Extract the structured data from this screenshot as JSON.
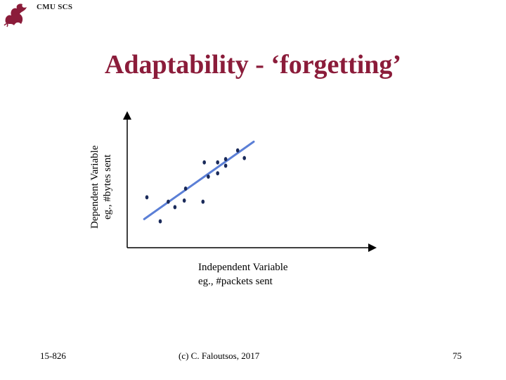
{
  "header": {
    "label": "CMU SCS",
    "logo_icon": "dragon-logo-icon"
  },
  "title": "Adaptability - ‘forgetting’",
  "y_axis": {
    "line1": "Dependent Variable",
    "line2": "eg., #bytes sent"
  },
  "x_axis": {
    "line1": "Independent Variable",
    "line2": "eg., #packets sent"
  },
  "footer": {
    "course": "15-826",
    "copyright": "(c) C. Faloutsos, 2017",
    "page": "75"
  },
  "colors": {
    "title": "#8b1c3a",
    "fit_line": "#5b7fd6",
    "points": "#1a2a5a"
  },
  "scatter": {
    "points": [
      [
        1.0,
        3.2
      ],
      [
        2.0,
        1.0
      ],
      [
        2.6,
        2.8
      ],
      [
        3.1,
        2.3
      ],
      [
        3.8,
        2.9
      ],
      [
        3.9,
        4.0
      ],
      [
        5.2,
        2.8
      ],
      [
        5.3,
        6.4
      ],
      [
        5.6,
        5.1
      ],
      [
        6.3,
        6.4
      ],
      [
        6.3,
        5.4
      ],
      [
        6.9,
        6.7
      ],
      [
        6.9,
        6.1
      ],
      [
        7.8,
        7.5
      ],
      [
        8.3,
        6.8
      ]
    ],
    "fit_line": {
      "start": [
        0.8,
        1.2
      ],
      "end": [
        9.0,
        8.3
      ]
    }
  }
}
